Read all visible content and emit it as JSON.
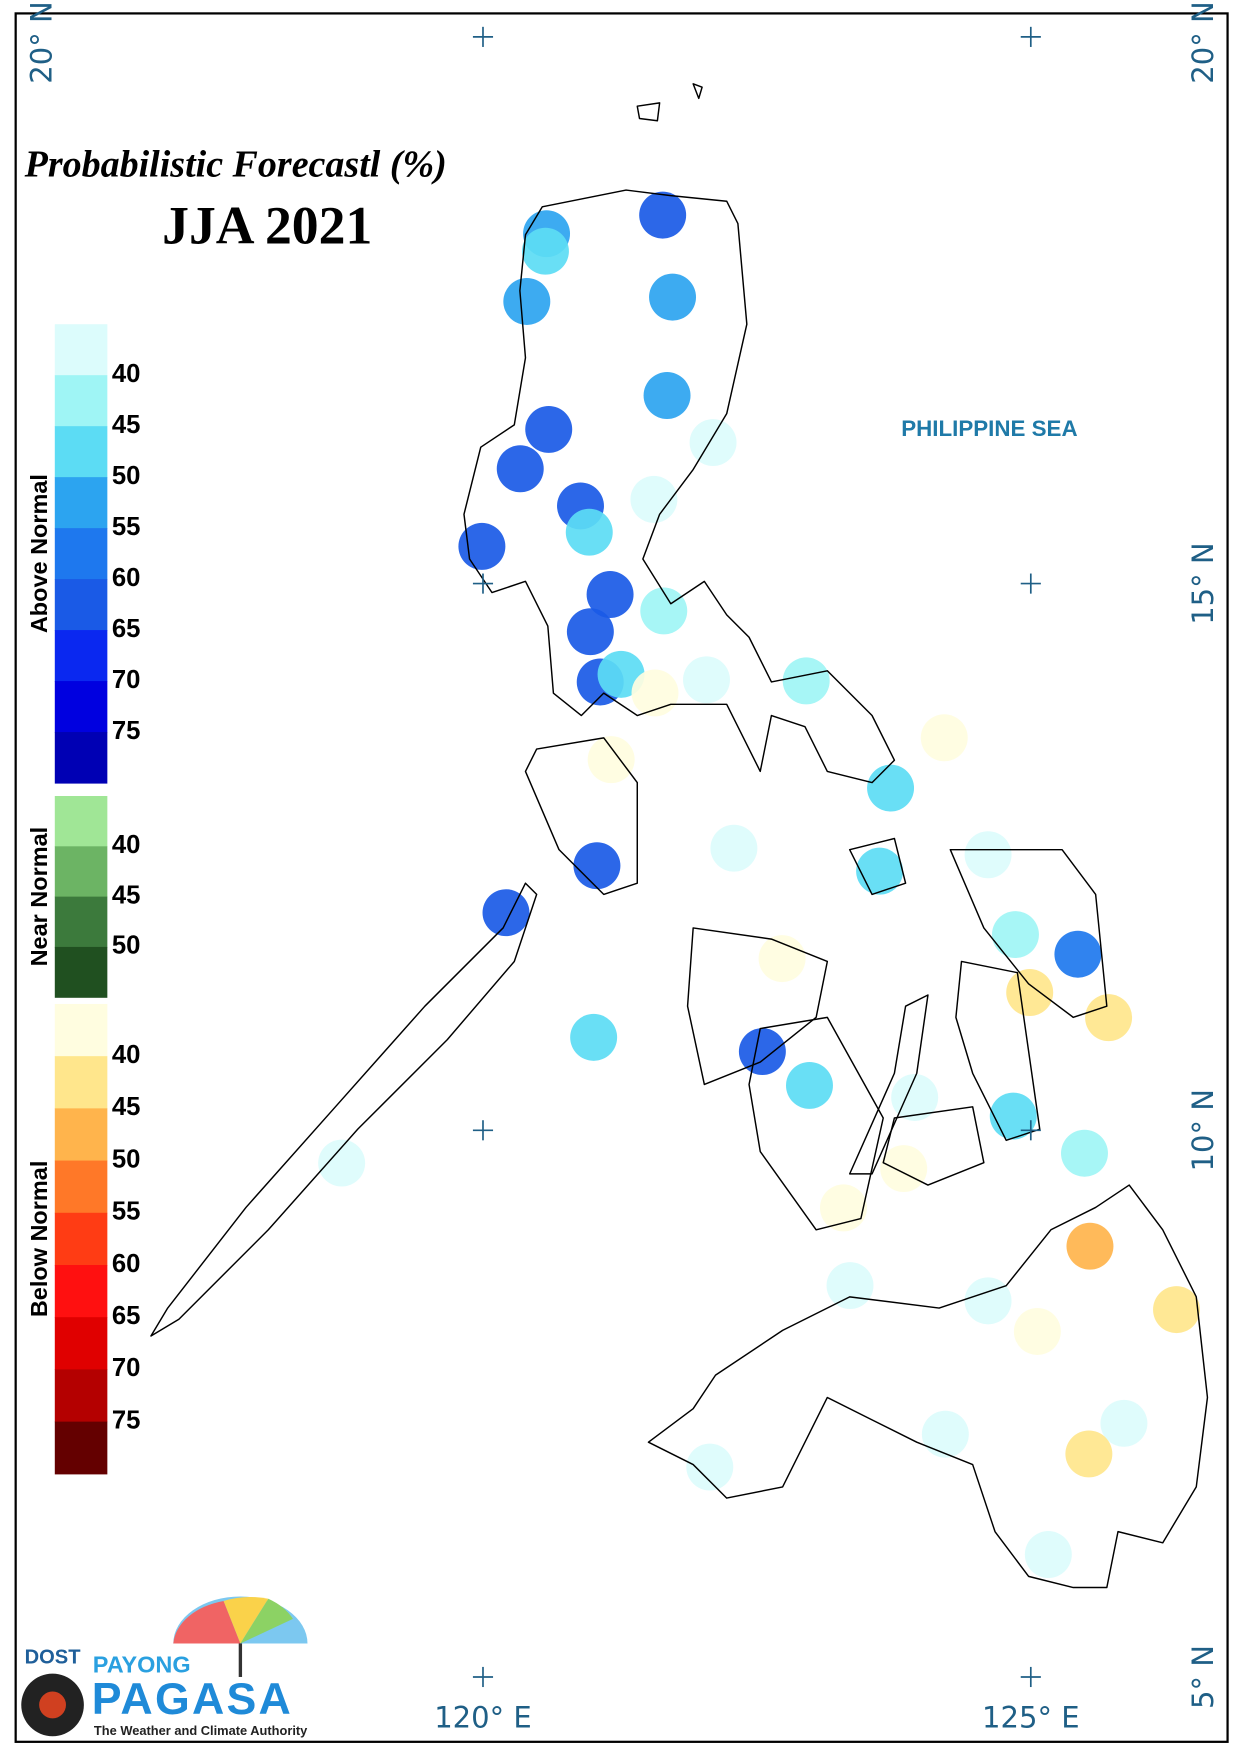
{
  "title": "Probabilistic Forecastl (%)",
  "subtitle": "JJA 2021",
  "sea_label": "PHILIPPINE SEA",
  "map": {
    "lon_ticks": [
      {
        "value": 120,
        "label": "120° E"
      },
      {
        "value": 125,
        "label": "125° E"
      }
    ],
    "lat_ticks": [
      {
        "value": 20,
        "label": "20° N"
      },
      {
        "value": 15,
        "label": "15° N"
      },
      {
        "value": 10,
        "label": "10° N"
      },
      {
        "value": 5,
        "label": "5° N"
      }
    ]
  },
  "legend": [
    {
      "name": "Above Normal",
      "ticks": [
        40,
        45,
        50,
        55,
        60,
        65,
        70,
        75
      ],
      "colors": [
        "#dcfcfc",
        "#9ff5f5",
        "#5cdcf4",
        "#2ca4f0",
        "#1e78ee",
        "#1a5ae6",
        "#0a28f0",
        "#0000e0",
        "#0000b4"
      ]
    },
    {
      "name": "Near Normal",
      "ticks": [
        40,
        45,
        50
      ],
      "colors": [
        "#a0e696",
        "#6cb464",
        "#3c7a3c",
        "#205020"
      ]
    },
    {
      "name": "Below Normal",
      "ticks": [
        40,
        45,
        50,
        55,
        60,
        65,
        70,
        75
      ],
      "colors": [
        "#fffde0",
        "#ffe68c",
        "#ffb44c",
        "#ff7828",
        "#ff3c14",
        "#ff1010",
        "#e00000",
        "#b40000",
        "#640000"
      ]
    }
  ],
  "stations": [
    {
      "group": "Above Normal",
      "lon": 120.58,
      "lat": 18.2,
      "value": 52
    },
    {
      "group": "Above Normal",
      "lon": 120.57,
      "lat": 18.04,
      "value": 47
    },
    {
      "group": "Above Normal",
      "lon": 121.64,
      "lat": 18.37,
      "value": 62
    },
    {
      "group": "Above Normal",
      "lon": 120.4,
      "lat": 17.58,
      "value": 52
    },
    {
      "group": "Above Normal",
      "lon": 121.73,
      "lat": 17.62,
      "value": 52
    },
    {
      "group": "Above Normal",
      "lon": 121.68,
      "lat": 16.72,
      "value": 52
    },
    {
      "group": "Above Normal",
      "lon": 120.6,
      "lat": 16.41,
      "value": 62
    },
    {
      "group": "Above Normal",
      "lon": 120.34,
      "lat": 16.05,
      "value": 62
    },
    {
      "group": "Above Normal",
      "lon": 122.1,
      "lat": 16.29,
      "value": 37
    },
    {
      "group": "Above Normal",
      "lon": 120.89,
      "lat": 15.71,
      "value": 62
    },
    {
      "group": "Above Normal",
      "lon": 121.56,
      "lat": 15.77,
      "value": 37
    },
    {
      "group": "Above Normal",
      "lon": 120.97,
      "lat": 15.47,
      "value": 47
    },
    {
      "group": "Above Normal",
      "lon": 119.99,
      "lat": 15.34,
      "value": 62
    },
    {
      "group": "Above Normal",
      "lon": 121.16,
      "lat": 14.9,
      "value": 62
    },
    {
      "group": "Above Normal",
      "lon": 121.65,
      "lat": 14.75,
      "value": 42
    },
    {
      "group": "Above Normal",
      "lon": 120.98,
      "lat": 14.56,
      "value": 62
    },
    {
      "group": "Above Normal",
      "lon": 121.07,
      "lat": 14.1,
      "value": 62
    },
    {
      "group": "Above Normal",
      "lon": 121.26,
      "lat": 14.17,
      "value": 47
    },
    {
      "group": "Above Normal",
      "lon": 122.04,
      "lat": 14.12,
      "value": 37
    },
    {
      "group": "Below Normal",
      "lon": 121.57,
      "lat": 14.0,
      "value": 37
    },
    {
      "group": "Above Normal",
      "lon": 122.95,
      "lat": 14.11,
      "value": 42
    },
    {
      "group": "Below Normal",
      "lon": 124.21,
      "lat": 13.59,
      "value": 37
    },
    {
      "group": "Below Normal",
      "lon": 121.17,
      "lat": 13.39,
      "value": 37
    },
    {
      "group": "Above Normal",
      "lon": 123.72,
      "lat": 13.13,
      "value": 47
    },
    {
      "group": "Above Normal",
      "lon": 122.29,
      "lat": 12.58,
      "value": 37
    },
    {
      "group": "Above Normal",
      "lon": 121.04,
      "lat": 12.42,
      "value": 62
    },
    {
      "group": "Above Normal",
      "lon": 123.62,
      "lat": 12.37,
      "value": 47
    },
    {
      "group": "Above Normal",
      "lon": 124.61,
      "lat": 12.52,
      "value": 37
    },
    {
      "group": "Above Normal",
      "lon": 120.21,
      "lat": 11.99,
      "value": 62
    },
    {
      "group": "Above Normal",
      "lon": 124.86,
      "lat": 11.79,
      "value": 42
    },
    {
      "group": "Above Normal",
      "lon": 125.43,
      "lat": 11.61,
      "value": 57
    },
    {
      "group": "Below Normal",
      "lon": 122.73,
      "lat": 11.57,
      "value": 37
    },
    {
      "group": "Below Normal",
      "lon": 124.99,
      "lat": 11.26,
      "value": 42
    },
    {
      "group": "Below Normal",
      "lon": 125.71,
      "lat": 11.03,
      "value": 42
    },
    {
      "group": "Above Normal",
      "lon": 121.01,
      "lat": 10.85,
      "value": 47
    },
    {
      "group": "Above Normal",
      "lon": 122.55,
      "lat": 10.72,
      "value": 62
    },
    {
      "group": "Above Normal",
      "lon": 122.98,
      "lat": 10.41,
      "value": 47
    },
    {
      "group": "Above Normal",
      "lon": 123.94,
      "lat": 10.3,
      "value": 37
    },
    {
      "group": "Above Normal",
      "lon": 124.84,
      "lat": 10.13,
      "value": 47
    },
    {
      "group": "Above Normal",
      "lon": 118.71,
      "lat": 9.7,
      "value": 37
    },
    {
      "group": "Above Normal",
      "lon": 125.49,
      "lat": 9.79,
      "value": 42
    },
    {
      "group": "Below Normal",
      "lon": 123.84,
      "lat": 9.65,
      "value": 37
    },
    {
      "group": "Below Normal",
      "lon": 123.29,
      "lat": 9.29,
      "value": 37
    },
    {
      "group": "Below Normal",
      "lon": 125.54,
      "lat": 8.94,
      "value": 47
    },
    {
      "group": "Above Normal",
      "lon": 123.35,
      "lat": 8.58,
      "value": 37
    },
    {
      "group": "Above Normal",
      "lon": 124.61,
      "lat": 8.44,
      "value": 37
    },
    {
      "group": "Below Normal",
      "lon": 126.33,
      "lat": 8.36,
      "value": 42
    },
    {
      "group": "Below Normal",
      "lon": 125.06,
      "lat": 8.16,
      "value": 37
    },
    {
      "group": "Above Normal",
      "lon": 124.22,
      "lat": 7.22,
      "value": 37
    },
    {
      "group": "Above Normal",
      "lon": 125.85,
      "lat": 7.32,
      "value": 37
    },
    {
      "group": "Below Normal",
      "lon": 125.53,
      "lat": 7.04,
      "value": 42
    },
    {
      "group": "Above Normal",
      "lon": 122.07,
      "lat": 6.92,
      "value": 37
    },
    {
      "group": "Above Normal",
      "lon": 125.16,
      "lat": 6.12,
      "value": 37
    }
  ],
  "logo": {
    "agency": "DOST",
    "line1": "PAYONG",
    "line2": "PAGASA",
    "tagline": "The Weather and Climate Authority"
  }
}
